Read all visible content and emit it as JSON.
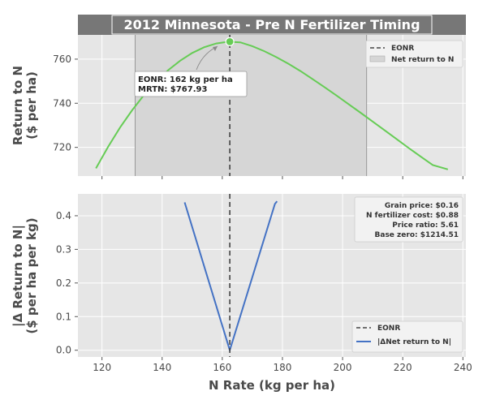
{
  "title": "2012 Minnesota - Pre N Fertilizer Timing",
  "xlabel": "N Rate (kg per ha)",
  "colors": {
    "return_line": "#66cc55",
    "delta_line": "#4472c4",
    "eonr_line": "#444444",
    "axes_bg": "#e6e6e6",
    "band_fill": "#d6d6d6",
    "title_bg": "#777777"
  },
  "chart_data": [
    {
      "type": "line",
      "ylabel_lines": [
        "Return to N",
        "($ per ha)"
      ],
      "xlim": [
        112,
        241
      ],
      "ylim": [
        707,
        771
      ],
      "xticks": [
        120,
        140,
        160,
        180,
        200,
        220,
        240
      ],
      "yticks": [
        720,
        740,
        760
      ],
      "series": [
        {
          "name": "Net return to N (line)",
          "x": [
            118,
            122,
            126,
            130,
            134,
            138,
            142,
            146,
            150,
            154,
            158,
            162,
            166,
            170,
            174,
            178,
            182,
            186,
            190,
            194,
            198,
            202,
            206,
            210,
            214,
            218,
            222,
            226,
            230,
            235
          ],
          "y": [
            710.5,
            720.2,
            729.0,
            736.8,
            743.8,
            749.9,
            755.0,
            759.3,
            762.8,
            765.4,
            767.1,
            767.9,
            767.6,
            765.9,
            763.6,
            760.9,
            757.9,
            754.6,
            751.0,
            747.3,
            743.5,
            739.6,
            735.7,
            731.7,
            727.7,
            723.7,
            719.7,
            715.8,
            712.0,
            710.0
          ]
        }
      ],
      "band": {
        "label": "Net return to N",
        "x_range": [
          131,
          208
        ]
      },
      "eonr": {
        "label": "EONR",
        "x": 162.5,
        "y": 767.93
      },
      "annotation_lines": [
        "EONR: 162 kg per ha",
        "MRTN: $767.93"
      ],
      "legend": [
        "EONR",
        "Net return to N"
      ],
      "legend_position": "top-right"
    },
    {
      "type": "line",
      "ylabel_lines": [
        "|Δ Return to N|",
        "($ per ha per kg)"
      ],
      "xlim": [
        112,
        241
      ],
      "ylim": [
        -0.02,
        0.465
      ],
      "xticks": [
        120,
        140,
        160,
        180,
        200,
        220,
        240
      ],
      "yticks": [
        0.0,
        0.1,
        0.2,
        0.3,
        0.4
      ],
      "ytick_labels": [
        "0.0",
        "0.1",
        "0.2",
        "0.3",
        "0.4"
      ],
      "series": [
        {
          "name": "|ΔNet return to N|",
          "x": [
            147.5,
            162.5,
            177.5,
            178.2
          ],
          "y": [
            0.44,
            0.0,
            0.435,
            0.443
          ]
        }
      ],
      "eonr": {
        "label": "EONR",
        "x": 162.5
      },
      "info_lines": [
        "Grain price: $0.16",
        "N fertilizer cost: $0.88",
        "Price ratio: 5.61",
        "Base zero: $1214.51"
      ],
      "legend": [
        "EONR",
        "|ΔNet return to N|"
      ],
      "legend_position": "bottom-right"
    }
  ]
}
